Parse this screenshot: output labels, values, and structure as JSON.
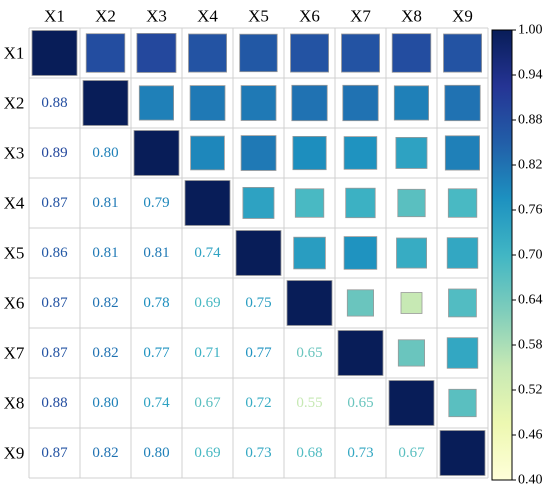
{
  "chart_data": {
    "type": "heatmap",
    "title": "",
    "variables": [
      "X1",
      "X2",
      "X3",
      "X4",
      "X5",
      "X6",
      "X7",
      "X8",
      "X9"
    ],
    "matrix": [
      [
        1.0,
        0.88,
        0.89,
        0.87,
        0.86,
        0.87,
        0.87,
        0.88,
        0.87
      ],
      [
        0.88,
        1.0,
        0.8,
        0.81,
        0.81,
        0.82,
        0.82,
        0.8,
        0.82
      ],
      [
        0.89,
        0.8,
        1.0,
        0.79,
        0.81,
        0.78,
        0.77,
        0.74,
        0.8
      ],
      [
        0.87,
        0.81,
        0.79,
        1.0,
        0.74,
        0.69,
        0.71,
        0.67,
        0.69
      ],
      [
        0.86,
        0.81,
        0.81,
        0.74,
        1.0,
        0.75,
        0.77,
        0.72,
        0.73
      ],
      [
        0.87,
        0.82,
        0.78,
        0.69,
        0.75,
        1.0,
        0.65,
        0.55,
        0.68
      ],
      [
        0.87,
        0.82,
        0.77,
        0.71,
        0.77,
        0.65,
        1.0,
        0.65,
        0.73
      ],
      [
        0.88,
        0.8,
        0.74,
        0.67,
        0.72,
        0.55,
        0.65,
        1.0,
        0.67
      ],
      [
        0.87,
        0.82,
        0.8,
        0.69,
        0.73,
        0.68,
        0.73,
        0.67,
        1.0
      ]
    ],
    "upper_triangle": "squares",
    "lower_triangle": "numbers",
    "colorbar": {
      "min": 0.4,
      "max": 1.0,
      "ticks": [
        "1.00",
        "0.94",
        "0.88",
        "0.82",
        "0.76",
        "0.70",
        "0.64",
        "0.58",
        "0.52",
        "0.46",
        "0.40"
      ],
      "colormap": "YlGnBu",
      "colors": [
        "#ffffd9",
        "#edf8b1",
        "#c7e9b4",
        "#7fcdbb",
        "#41b6c4",
        "#1d91c0",
        "#225ea8",
        "#253494",
        "#081d58"
      ]
    }
  }
}
